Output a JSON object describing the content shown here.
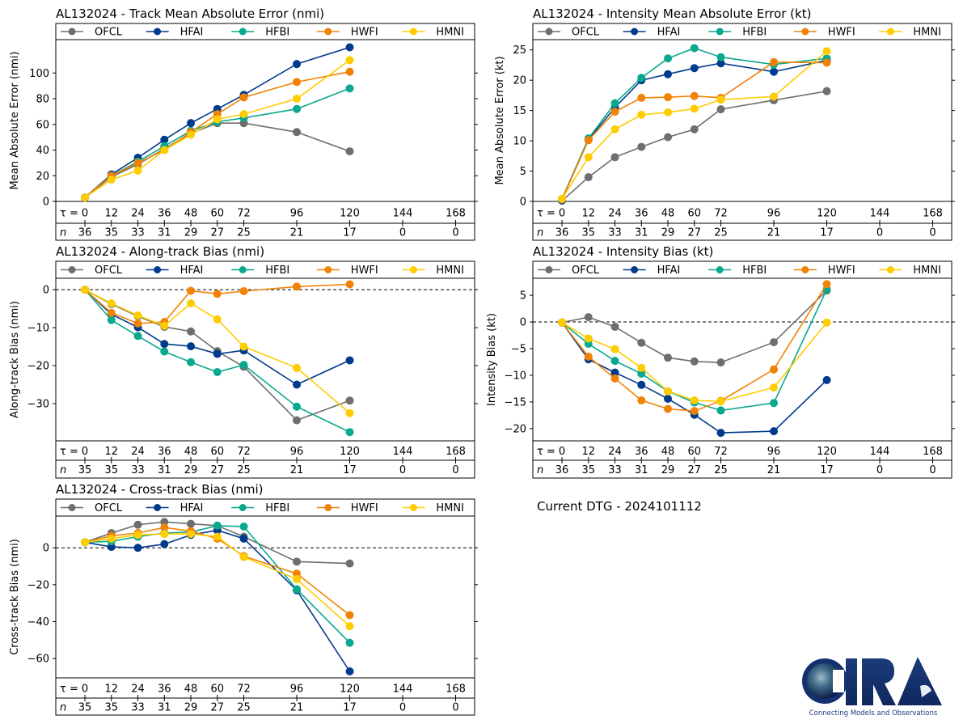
{
  "storm_id": "AL132024",
  "dtg_text": "Current DTG - 2024101112",
  "logo": {
    "name": "CIRA",
    "tagline": "Connecting Models and Observations"
  },
  "models": [
    {
      "name": "OFCL",
      "color": "#6e6e6e"
    },
    {
      "name": "HFAI",
      "color": "#003a8c"
    },
    {
      "name": "HFBI",
      "color": "#0aa88e"
    },
    {
      "name": "HWFI",
      "color": "#f08305"
    },
    {
      "name": "HMNI",
      "color": "#ffcc00"
    }
  ],
  "chart_data": [
    {
      "id": "track_mae",
      "type": "line",
      "title": "AL132024 - Track Mean Absolute Error (nmi)",
      "ylabel": "Mean Absolute Error (nmi)",
      "xlabel": "τ",
      "tau_label": "τ = ",
      "n_label": "n",
      "x": [
        0,
        12,
        24,
        36,
        48,
        60,
        72,
        96,
        120
      ],
      "tau_ticks": [
        0,
        12,
        24,
        36,
        48,
        60,
        72,
        96,
        120,
        144,
        168
      ],
      "n_counts": [
        36,
        35,
        33,
        31,
        29,
        27,
        25,
        21,
        17,
        0,
        0
      ],
      "yticks": [
        0,
        20,
        40,
        60,
        80,
        100
      ],
      "ylim": [
        0,
        126
      ],
      "zero_line": false,
      "legend": "top",
      "series": [
        {
          "name": "OFCL",
          "values": [
            3,
            19,
            29,
            41,
            53,
            61,
            61,
            54,
            39
          ]
        },
        {
          "name": "HFAI",
          "values": [
            3,
            21,
            34,
            48,
            61,
            72,
            83,
            107,
            120
          ]
        },
        {
          "name": "HFBI",
          "values": [
            3,
            20,
            31,
            43,
            55,
            62,
            65,
            72,
            88
          ]
        },
        {
          "name": "HWFI",
          "values": [
            3,
            20,
            30,
            40,
            54,
            68,
            81,
            93,
            101
          ]
        },
        {
          "name": "HMNI",
          "values": [
            3,
            17,
            24,
            40,
            52,
            64,
            68,
            80,
            110
          ]
        }
      ]
    },
    {
      "id": "intensity_mae",
      "type": "line",
      "title": "AL132024 - Intensity Mean Absolute Error (kt)",
      "ylabel": "Mean Absolute Error (kt)",
      "xlabel": "τ",
      "tau_label": "τ = ",
      "n_label": "n",
      "x": [
        0,
        12,
        24,
        36,
        48,
        60,
        72,
        96,
        120
      ],
      "tau_ticks": [
        0,
        12,
        24,
        36,
        48,
        60,
        72,
        96,
        120,
        144,
        168
      ],
      "n_counts": [
        36,
        35,
        33,
        31,
        29,
        27,
        25,
        21,
        17,
        0,
        0
      ],
      "yticks": [
        0,
        5,
        10,
        15,
        20,
        25
      ],
      "ylim": [
        0,
        26.7
      ],
      "zero_line": false,
      "legend": "top",
      "series": [
        {
          "name": "OFCL",
          "values": [
            0.1,
            4.0,
            7.3,
            9.0,
            10.6,
            11.9,
            15.2,
            16.7,
            18.2
          ]
        },
        {
          "name": "HFAI",
          "values": [
            0.3,
            10.2,
            15.5,
            20.0,
            21.0,
            22.0,
            22.8,
            21.4,
            23.3
          ]
        },
        {
          "name": "HFBI",
          "values": [
            0.4,
            10.4,
            16.2,
            20.4,
            23.6,
            25.3,
            23.8,
            22.6,
            23.6
          ]
        },
        {
          "name": "HWFI",
          "values": [
            0.4,
            10.1,
            14.8,
            17.1,
            17.2,
            17.4,
            17.1,
            23.0,
            22.9
          ]
        },
        {
          "name": "HMNI",
          "values": [
            0.4,
            7.3,
            11.9,
            14.3,
            14.7,
            15.3,
            16.8,
            17.3,
            24.8
          ]
        }
      ]
    },
    {
      "id": "along_track_bias",
      "type": "line",
      "title": "AL132024 - Along-track Bias (nmi)",
      "ylabel": "Along-track Bias (nmi)",
      "xlabel": "τ",
      "tau_label": "τ = ",
      "n_label": "n",
      "x": [
        0,
        12,
        24,
        36,
        48,
        60,
        72,
        96,
        120
      ],
      "tau_ticks": [
        0,
        12,
        24,
        36,
        48,
        60,
        72,
        96,
        120,
        144,
        168
      ],
      "n_counts": [
        35,
        35,
        33,
        31,
        29,
        27,
        25,
        21,
        17,
        0,
        0
      ],
      "yticks": [
        -30,
        -20,
        -10,
        0
      ],
      "ylim": [
        -39.8,
        3.0
      ],
      "zero_line": true,
      "legend": "top",
      "series": [
        {
          "name": "OFCL",
          "values": [
            0,
            -3.8,
            -7.0,
            -9.8,
            -11.0,
            -16.2,
            -20.3,
            -34.4,
            -29.2
          ]
        },
        {
          "name": "HFAI",
          "values": [
            0,
            -6.5,
            -9.9,
            -14.3,
            -14.9,
            -16.9,
            -16.0,
            -25.0,
            -18.6
          ]
        },
        {
          "name": "HFBI",
          "values": [
            0,
            -8.0,
            -12.2,
            -16.3,
            -19.1,
            -21.7,
            -19.8,
            -30.8,
            -37.5
          ]
        },
        {
          "name": "HWFI",
          "values": [
            0,
            -6.1,
            -8.9,
            -8.5,
            -0.3,
            -1.1,
            -0.4,
            0.8,
            1.4
          ]
        },
        {
          "name": "HMNI",
          "values": [
            0,
            -3.6,
            -6.8,
            -9.5,
            -3.6,
            -7.8,
            -15.0,
            -20.6,
            -32.5
          ]
        }
      ]
    },
    {
      "id": "intensity_bias",
      "type": "line",
      "title": "AL132024 - Intensity Bias (kt)",
      "ylabel": "Intensity Bias (kt)",
      "xlabel": "τ",
      "tau_label": "τ = ",
      "n_label": "n",
      "x": [
        0,
        12,
        24,
        36,
        48,
        60,
        72,
        96,
        120
      ],
      "tau_ticks": [
        0,
        12,
        24,
        36,
        48,
        60,
        72,
        96,
        120,
        144,
        168
      ],
      "n_counts": [
        36,
        35,
        33,
        31,
        29,
        27,
        25,
        21,
        17,
        0,
        0
      ],
      "yticks": [
        -20,
        -15,
        -10,
        -5,
        0,
        5
      ],
      "ylim": [
        -22.3,
        8.2
      ],
      "zero_line": true,
      "legend": "top",
      "series": [
        {
          "name": "OFCL",
          "values": [
            -0.1,
            0.9,
            -0.9,
            -3.9,
            -6.7,
            -7.4,
            -7.6,
            -3.8,
            5.9
          ]
        },
        {
          "name": "HFAI",
          "values": [
            -0.1,
            -7.0,
            -9.5,
            -11.8,
            -14.4,
            -17.4,
            -20.8,
            -20.5,
            -10.9
          ]
        },
        {
          "name": "HFBI",
          "values": [
            -0.1,
            -4.1,
            -7.3,
            -9.7,
            -13.0,
            -15.1,
            -16.6,
            -15.2,
            6.1
          ]
        },
        {
          "name": "HWFI",
          "values": [
            -0.1,
            -6.5,
            -10.6,
            -14.7,
            -16.3,
            -16.7,
            -14.8,
            -8.9,
            7.1
          ]
        },
        {
          "name": "HMNI",
          "values": [
            -0.1,
            -3.1,
            -5.1,
            -8.6,
            -13.0,
            -14.7,
            -14.9,
            -12.3,
            -0.1
          ]
        }
      ]
    },
    {
      "id": "cross_track_bias",
      "type": "line",
      "title": "AL132024 - Cross-track Bias (nmi)",
      "ylabel": "Cross-track Bias (nmi)",
      "xlabel": "τ",
      "tau_label": "τ = ",
      "n_label": "n",
      "x": [
        0,
        12,
        24,
        36,
        48,
        60,
        72,
        96,
        120
      ],
      "tau_ticks": [
        0,
        12,
        24,
        36,
        48,
        60,
        72,
        96,
        120,
        144,
        168
      ],
      "n_counts": [
        35,
        35,
        33,
        31,
        29,
        27,
        25,
        21,
        17,
        0,
        0
      ],
      "yticks": [
        -60,
        -40,
        -20,
        0
      ],
      "ylim": [
        -70.5,
        17.2
      ],
      "zero_line": true,
      "legend": "top",
      "series": [
        {
          "name": "OFCL",
          "values": [
            3,
            8,
            12.5,
            14,
            13,
            12,
            6,
            -7.5,
            -8.5
          ]
        },
        {
          "name": "HFAI",
          "values": [
            3,
            0.5,
            0,
            2,
            7,
            9.5,
            5,
            -23,
            -67
          ]
        },
        {
          "name": "HFBI",
          "values": [
            3,
            3.5,
            6,
            8,
            8.5,
            12,
            11.5,
            -22.5,
            -51.5
          ]
        },
        {
          "name": "HWFI",
          "values": [
            3,
            6.5,
            8,
            11,
            9,
            5,
            -4.5,
            -14,
            -36.5
          ]
        },
        {
          "name": "HMNI",
          "values": [
            3,
            5,
            7,
            7.5,
            7.5,
            6,
            -5,
            -17,
            -42.5
          ]
        }
      ]
    }
  ]
}
